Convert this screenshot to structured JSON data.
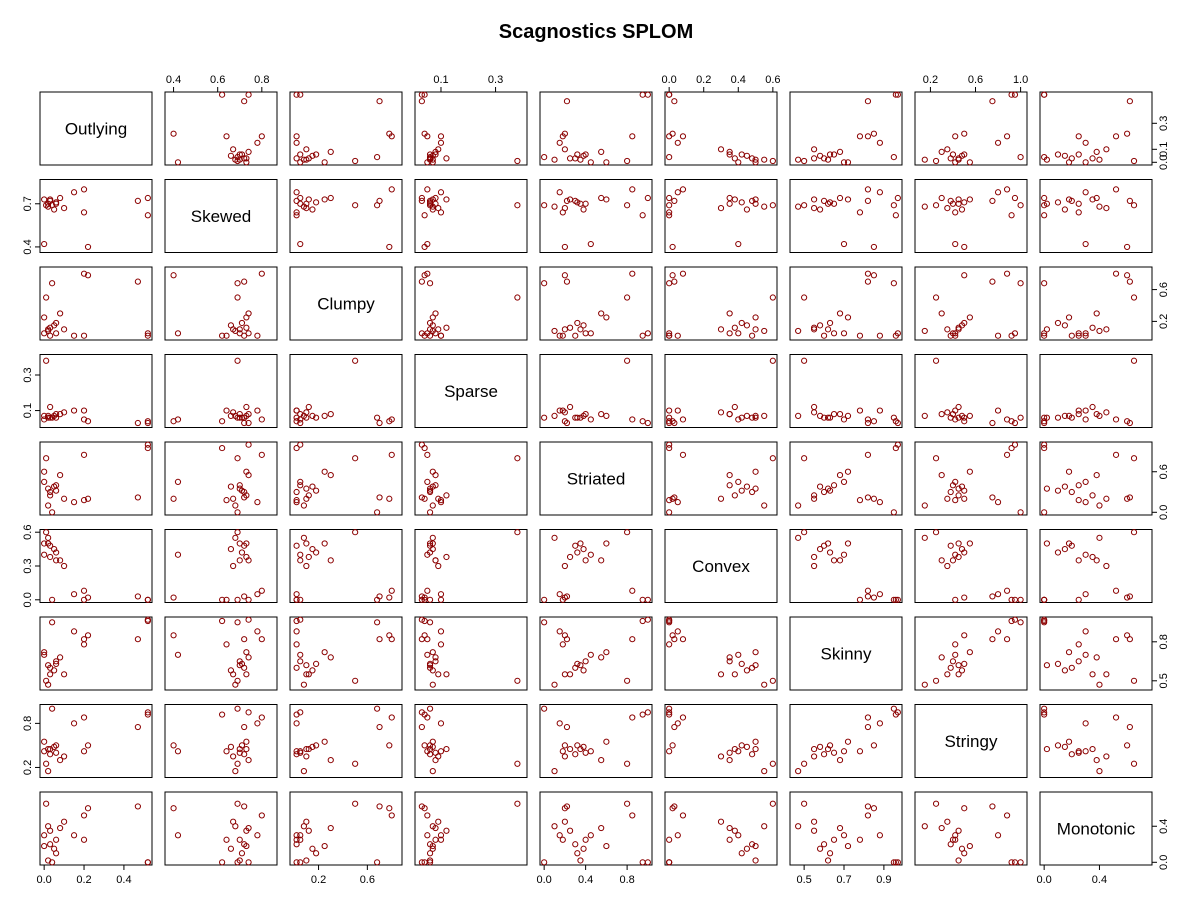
{
  "chart_data": {
    "type": "splom",
    "title": "Scagnostics SPLOM",
    "color": "#8b0000",
    "variables": [
      {
        "name": "Outlying",
        "lim": [
          0,
          0.52
        ],
        "xticks": [
          {
            "value": 0,
            "label": "0.0"
          },
          0.2,
          0.4
        ],
        "yticks": [
          {
            "value": 0,
            "label": "0.0"
          },
          0.1,
          0.3
        ],
        "values": [
          0.0,
          0.02,
          0.03,
          0.04,
          0.05,
          0.06,
          0.08,
          0.0,
          0.1,
          0.15,
          0.2,
          0.2,
          0.22,
          0.47,
          0.52,
          0.52,
          0.01,
          0.03,
          0.06,
          0.02
        ]
      },
      {
        "name": "Skewed",
        "lim": [
          0.38,
          0.85
        ],
        "xticks": [
          0.4,
          0.6,
          0.8
        ],
        "yticks": [
          0.4,
          0.7
        ],
        "values": [
          0.42,
          0.7,
          0.72,
          0.69,
          0.66,
          0.7,
          0.74,
          0.73,
          0.67,
          0.78,
          0.8,
          0.64,
          0.4,
          0.72,
          0.74,
          0.62,
          0.69,
          0.73,
          0.71,
          0.68
        ]
      },
      {
        "name": "Clumpy",
        "lim": [
          0,
          0.85
        ],
        "xticks": [
          0.2,
          0.6
        ],
        "yticks": [
          0.2,
          0.6
        ],
        "values": [
          0.05,
          0.1,
          0.02,
          0.68,
          0.15,
          0.05,
          0.3,
          0.25,
          0.1,
          0.02,
          0.8,
          0.02,
          0.78,
          0.7,
          0.05,
          0.02,
          0.5,
          0.12,
          0.18,
          0.08
        ]
      },
      {
        "name": "Sparse",
        "lim": [
          0.02,
          0.4
        ],
        "xticks": [
          0.1,
          0.3
        ],
        "yticks": [
          0.1,
          0.3
        ],
        "values": [
          0.05,
          0.06,
          0.06,
          0.06,
          0.07,
          0.08,
          0.08,
          0.07,
          0.09,
          0.1,
          0.05,
          0.1,
          0.04,
          0.03,
          0.03,
          0.04,
          0.38,
          0.12,
          0.06,
          0.07
        ]
      },
      {
        "name": "Striated",
        "lim": [
          0,
          1
        ],
        "xticks": [
          {
            "value": 0,
            "label": "0.0"
          },
          0.4,
          0.8
        ],
        "yticks": [
          {
            "value": 0,
            "label": "0.0"
          },
          0.6
        ],
        "values": [
          0.45,
          0.35,
          0.3,
          0.0,
          0.38,
          0.4,
          0.55,
          0.6,
          0.2,
          0.15,
          0.85,
          0.18,
          0.2,
          0.22,
          1.0,
          0.95,
          0.8,
          0.25,
          0.32,
          0.1
        ]
      },
      {
        "name": "Convex",
        "lim": [
          0,
          0.6
        ],
        "xticks": [
          {
            "value": 0,
            "label": "0.0"
          },
          0.2,
          0.4,
          0.6
        ],
        "yticks": [
          {
            "value": 0,
            "label": "0.0"
          },
          0.3,
          0.6
        ],
        "values": [
          0.4,
          0.5,
          0.48,
          0.0,
          0.45,
          0.35,
          0.35,
          0.5,
          0.3,
          0.05,
          0.08,
          0.0,
          0.02,
          0.03,
          0.0,
          0.0,
          0.6,
          0.38,
          0.42,
          0.55
        ]
      },
      {
        "name": "Skinny",
        "lim": [
          0.45,
          0.97
        ],
        "xticks": [
          0.5,
          0.7,
          0.9
        ],
        "yticks": [
          0.5,
          0.8
        ],
        "values": [
          0.7,
          0.62,
          0.6,
          0.95,
          0.58,
          0.65,
          0.68,
          0.72,
          0.55,
          0.88,
          0.82,
          0.78,
          0.85,
          0.82,
          0.97,
          0.96,
          0.5,
          0.55,
          0.63,
          0.47
        ]
      },
      {
        "name": "Stringy",
        "lim": [
          0.1,
          1.02
        ],
        "xticks": [
          0.2,
          0.6,
          {
            "value": 1,
            "label": "1.0"
          }
        ],
        "yticks": [
          0.2,
          0.8
        ],
        "values": [
          0.42,
          0.45,
          0.38,
          1.0,
          0.48,
          0.4,
          0.3,
          0.55,
          0.35,
          0.8,
          0.88,
          0.42,
          0.5,
          0.75,
          0.95,
          0.92,
          0.25,
          0.45,
          0.5,
          0.15
        ]
      },
      {
        "name": "Monotonic",
        "lim": [
          0,
          0.75
        ],
        "xticks": [
          {
            "value": 0,
            "label": "0.0"
          },
          0.4
        ],
        "yticks": [
          {
            "value": 0,
            "label": "0.0"
          },
          0.4
        ],
        "values": [
          0.3,
          0.02,
          0.2,
          0.0,
          0.15,
          0.25,
          0.38,
          0.18,
          0.45,
          0.3,
          0.52,
          0.25,
          0.6,
          0.62,
          0.0,
          0.0,
          0.65,
          0.35,
          0.1,
          0.4
        ]
      }
    ]
  }
}
